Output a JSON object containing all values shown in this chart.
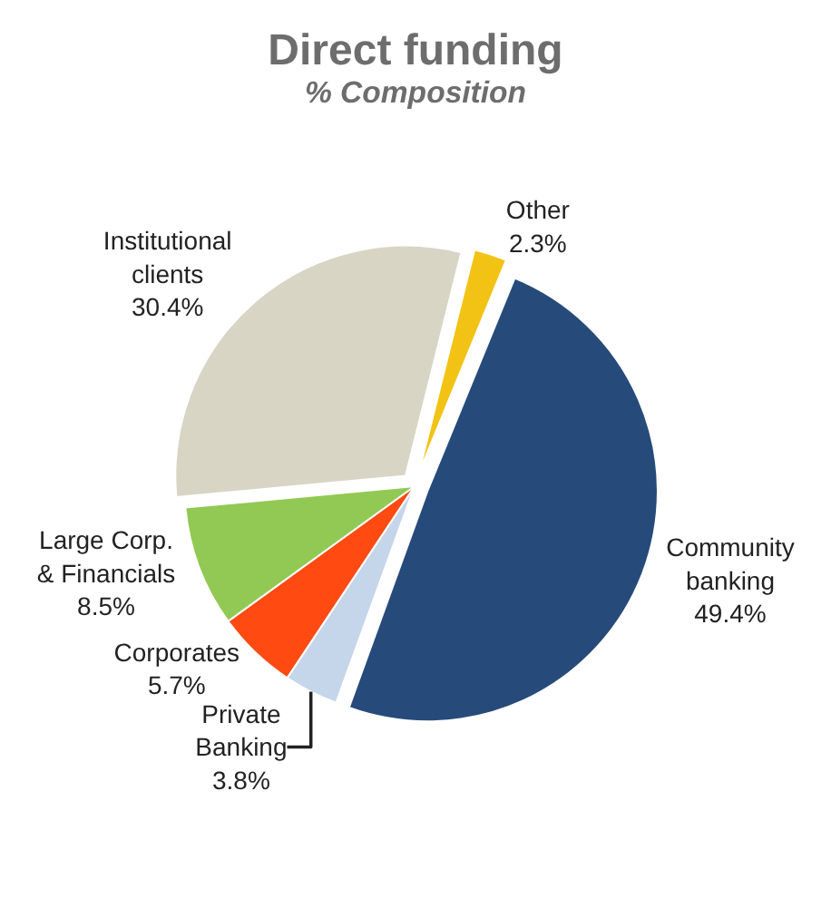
{
  "chart_data": {
    "type": "pie",
    "title": "Direct funding",
    "subtitle": "% Composition",
    "categories": [
      "Other",
      "Community banking",
      "Private Banking",
      "Corporates",
      "Large Corp. & Financials",
      "Institutional clients"
    ],
    "values": [
      2.3,
      49.4,
      3.8,
      5.7,
      8.5,
      30.4
    ],
    "colors": [
      "#f2c314",
      "#264b7a",
      "#c5d5ea",
      "#ff4a12",
      "#92c954",
      "#d9d5c5"
    ],
    "value_labels": [
      "2.3%",
      "49.4%",
      "3.8%",
      "5.7%",
      "8.5%",
      "30.4%"
    ],
    "legend": false
  }
}
